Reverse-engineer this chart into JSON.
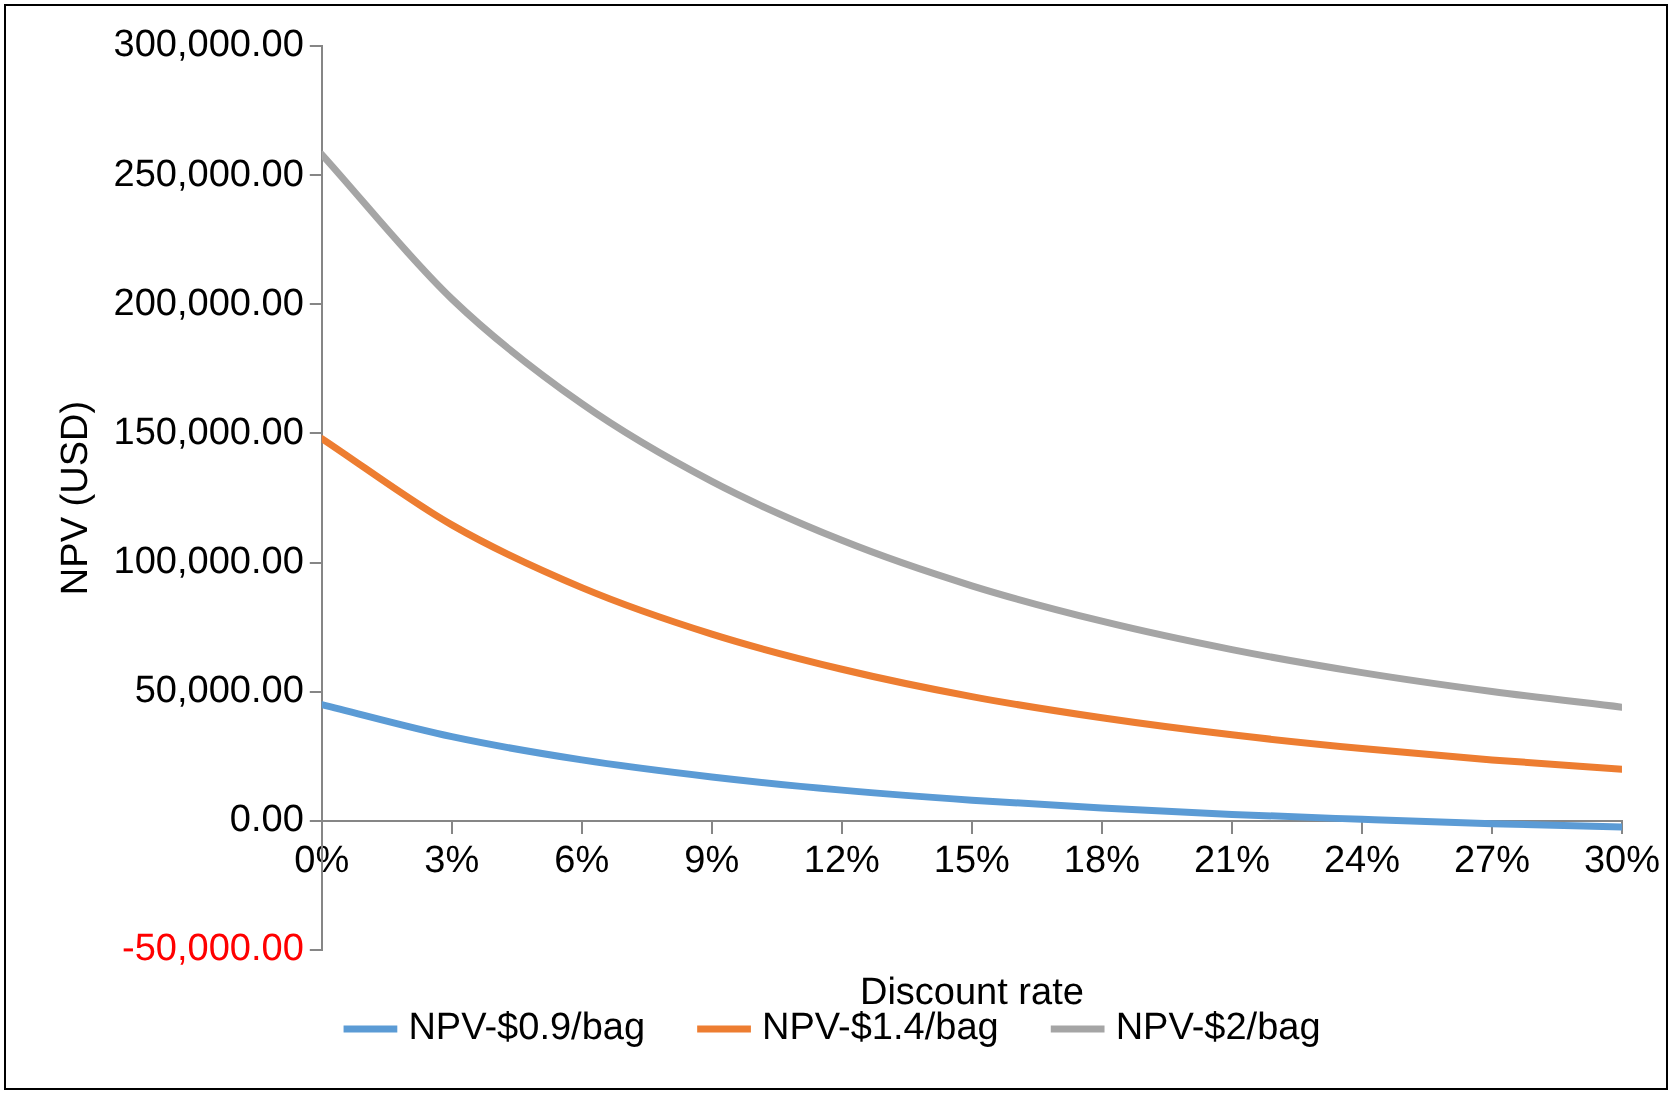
{
  "chart_data": {
    "type": "line",
    "xlabel": "Discount rate",
    "ylabel": "NPV (USD)",
    "x": [
      0,
      3,
      6,
      9,
      12,
      15,
      18,
      21,
      24,
      27,
      30
    ],
    "xlim": [
      0,
      30
    ],
    "xticks": [
      {
        "value": 0,
        "label": "0%"
      },
      {
        "value": 3,
        "label": "3%"
      },
      {
        "value": 6,
        "label": "6%"
      },
      {
        "value": 9,
        "label": "9%"
      },
      {
        "value": 12,
        "label": "12%"
      },
      {
        "value": 15,
        "label": "15%"
      },
      {
        "value": 18,
        "label": "18%"
      },
      {
        "value": 21,
        "label": "21%"
      },
      {
        "value": 24,
        "label": "24%"
      },
      {
        "value": 27,
        "label": "27%"
      },
      {
        "value": 30,
        "label": "30%"
      }
    ],
    "ylim": [
      -50000,
      300000
    ],
    "yticks": [
      {
        "value": -50000,
        "label": "-50,000.00"
      },
      {
        "value": 0,
        "label": "0.00"
      },
      {
        "value": 50000,
        "label": "50,000.00"
      },
      {
        "value": 100000,
        "label": "100,000.00"
      },
      {
        "value": 150000,
        "label": "150,000.00"
      },
      {
        "value": 200000,
        "label": "200,000.00"
      },
      {
        "value": 250000,
        "label": "250,000.00"
      },
      {
        "value": 300000,
        "label": "300,000.00"
      }
    ],
    "series": [
      {
        "name": "NPV-$0.9/bag",
        "color": "#5b9bd5",
        "values": [
          45000,
          32600,
          23600,
          17000,
          11900,
          8000,
          5000,
          2500,
          600,
          -1100,
          -2400
        ]
      },
      {
        "name": "NPV-$1.4/bag",
        "color": "#ed7d31",
        "values": [
          148000,
          114600,
          90300,
          72300,
          58700,
          48100,
          39900,
          33300,
          28000,
          23600,
          20000
        ]
      },
      {
        "name": "NPV-$2/bag",
        "color": "#a5a5a5",
        "values": [
          258000,
          202100,
          161500,
          131400,
          108600,
          91000,
          77300,
          66300,
          57400,
          50100,
          44000
        ]
      }
    ],
    "grid": false,
    "legend": "bottom",
    "marker": "none",
    "line_style": "solid"
  }
}
